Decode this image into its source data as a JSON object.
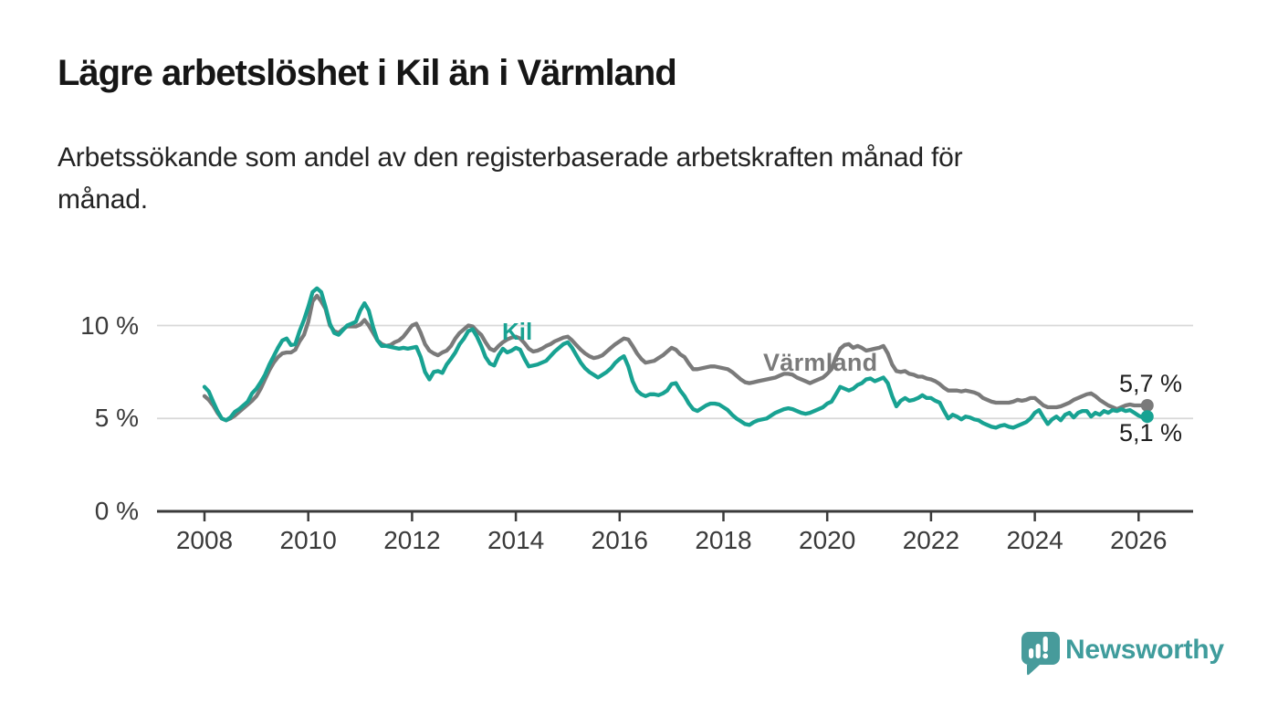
{
  "page": {
    "background": "#ffffff"
  },
  "header": {
    "title": "Lägre arbetslöshet i Kil än i Värmland",
    "subtitle_lines": [
      "Arbetssökande som andel av den registerbaserade arbetskraften månad för",
      "månad."
    ]
  },
  "chart_data": {
    "type": "line",
    "title": "Lägre arbetslöshet i Kil än i Värmland",
    "description": "Arbetssökande som andel av den registerbaserade arbetskraften månad för månad.",
    "x_start_year": 2008,
    "x_frequency": "monthly",
    "x_end": "2026-03",
    "ylim": [
      0,
      13
    ],
    "grid": "horizontal-only",
    "y_gridline_values": [
      5,
      10
    ],
    "y_ticks": [
      {
        "label": "0 %",
        "value": 0
      },
      {
        "label": "5 %",
        "value": 5
      },
      {
        "label": "10 %",
        "value": 10
      }
    ],
    "x_ticks": [
      {
        "label": "2008",
        "year": 2008
      },
      {
        "label": "2010",
        "year": 2010
      },
      {
        "label": "2012",
        "year": 2012
      },
      {
        "label": "2014",
        "year": 2014
      },
      {
        "label": "2016",
        "year": 2016
      },
      {
        "label": "2018",
        "year": 2018
      },
      {
        "label": "2020",
        "year": 2020
      },
      {
        "label": "2022",
        "year": 2022
      },
      {
        "label": "2024",
        "year": 2024
      },
      {
        "label": "2026",
        "year": 2026
      }
    ],
    "series_labels": [
      {
        "text": "Kil",
        "color": "#18a292"
      },
      {
        "text": "Värmland",
        "color": "#7a7a7a"
      }
    ],
    "annotations": [
      {
        "text": "5,7 %",
        "series": "Värmland",
        "value": 5.7
      },
      {
        "text": "5,1 %",
        "series": "Kil",
        "value": 5.1
      }
    ],
    "series": [
      {
        "name": "Värmland",
        "color": "#7a7a7a",
        "values": [
          6.2,
          6.0,
          5.7,
          5.3,
          5.0,
          4.9,
          5.0,
          5.15,
          5.35,
          5.55,
          5.75,
          5.95,
          6.2,
          6.6,
          7.1,
          7.6,
          8.0,
          8.3,
          8.5,
          8.55,
          8.55,
          8.7,
          9.15,
          9.5,
          10.2,
          11.3,
          11.6,
          11.3,
          10.9,
          10.0,
          9.7,
          9.6,
          9.8,
          9.95,
          9.95,
          9.95,
          10.05,
          10.3,
          10.0,
          9.6,
          9.2,
          9.0,
          8.9,
          8.95,
          9.1,
          9.2,
          9.4,
          9.7,
          10.0,
          10.1,
          9.6,
          9.0,
          8.65,
          8.5,
          8.4,
          8.55,
          8.65,
          8.9,
          9.3,
          9.6,
          9.8,
          10.0,
          9.95,
          9.7,
          9.5,
          9.1,
          8.75,
          8.65,
          8.9,
          9.1,
          9.25,
          9.35,
          9.4,
          9.3,
          9.05,
          8.75,
          8.6,
          8.65,
          8.75,
          8.9,
          9.0,
          9.15,
          9.25,
          9.35,
          9.4,
          9.2,
          8.95,
          8.7,
          8.5,
          8.35,
          8.25,
          8.3,
          8.4,
          8.6,
          8.8,
          9.0,
          9.15,
          9.3,
          9.25,
          8.9,
          8.5,
          8.2,
          8.0,
          8.05,
          8.1,
          8.25,
          8.4,
          8.6,
          8.8,
          8.7,
          8.45,
          8.3,
          7.95,
          7.65,
          7.65,
          7.7,
          7.75,
          7.8,
          7.8,
          7.75,
          7.7,
          7.65,
          7.5,
          7.3,
          7.1,
          6.95,
          6.9,
          6.95,
          7.0,
          7.05,
          7.1,
          7.15,
          7.2,
          7.3,
          7.4,
          7.4,
          7.35,
          7.2,
          7.1,
          7.0,
          6.9,
          7.0,
          7.1,
          7.2,
          7.4,
          7.65,
          8.3,
          8.75,
          8.95,
          9.0,
          8.8,
          8.9,
          8.8,
          8.65,
          8.7,
          8.75,
          8.8,
          8.9,
          8.5,
          7.9,
          7.55,
          7.5,
          7.55,
          7.4,
          7.35,
          7.25,
          7.25,
          7.15,
          7.1,
          7.0,
          6.85,
          6.65,
          6.5,
          6.5,
          6.5,
          6.45,
          6.5,
          6.45,
          6.4,
          6.3,
          6.1,
          6.0,
          5.9,
          5.85,
          5.85,
          5.85,
          5.85,
          5.9,
          6.0,
          5.95,
          6.0,
          6.1,
          6.1,
          5.9,
          5.7,
          5.6,
          5.6,
          5.6,
          5.65,
          5.75,
          5.85,
          6.0,
          6.1,
          6.2,
          6.3,
          6.35,
          6.2,
          6.0,
          5.85,
          5.7,
          5.6,
          5.5,
          5.6,
          5.7,
          5.75,
          5.7,
          5.7,
          5.7,
          5.7
        ]
      },
      {
        "name": "Kil",
        "color": "#18a292",
        "values": [
          6.7,
          6.45,
          5.9,
          5.4,
          5.0,
          4.9,
          5.05,
          5.35,
          5.5,
          5.7,
          5.9,
          6.35,
          6.6,
          6.95,
          7.35,
          7.9,
          8.35,
          8.8,
          9.2,
          9.3,
          8.95,
          9.0,
          9.7,
          10.3,
          11.0,
          11.8,
          12.0,
          11.8,
          11.0,
          10.1,
          9.6,
          9.5,
          9.75,
          10.0,
          10.1,
          10.2,
          10.8,
          11.2,
          10.8,
          9.9,
          9.2,
          8.9,
          8.9,
          8.85,
          8.8,
          8.75,
          8.8,
          8.75,
          8.8,
          8.85,
          8.3,
          7.5,
          7.1,
          7.5,
          7.55,
          7.45,
          7.9,
          8.2,
          8.55,
          9.0,
          9.3,
          9.7,
          9.8,
          9.4,
          8.9,
          8.3,
          7.95,
          7.85,
          8.4,
          8.75,
          8.55,
          8.65,
          8.8,
          8.7,
          8.2,
          7.8,
          7.85,
          7.9,
          8.0,
          8.1,
          8.35,
          8.6,
          8.8,
          9.0,
          9.1,
          8.8,
          8.4,
          8.0,
          7.7,
          7.5,
          7.35,
          7.2,
          7.35,
          7.5,
          7.7,
          8.0,
          8.2,
          8.35,
          7.8,
          7.0,
          6.5,
          6.3,
          6.2,
          6.3,
          6.3,
          6.25,
          6.35,
          6.5,
          6.85,
          6.9,
          6.5,
          6.2,
          5.8,
          5.5,
          5.4,
          5.55,
          5.7,
          5.8,
          5.8,
          5.75,
          5.6,
          5.45,
          5.2,
          5.0,
          4.85,
          4.7,
          4.65,
          4.8,
          4.9,
          4.95,
          5.0,
          5.15,
          5.3,
          5.4,
          5.5,
          5.55,
          5.5,
          5.4,
          5.3,
          5.25,
          5.3,
          5.4,
          5.5,
          5.6,
          5.8,
          5.9,
          6.3,
          6.7,
          6.6,
          6.5,
          6.6,
          6.8,
          6.9,
          7.1,
          7.15,
          7.0,
          7.1,
          7.2,
          6.9,
          6.2,
          5.65,
          5.95,
          6.1,
          5.95,
          6.0,
          6.1,
          6.25,
          6.1,
          6.1,
          5.95,
          5.85,
          5.4,
          5.0,
          5.2,
          5.1,
          4.95,
          5.1,
          5.05,
          4.95,
          4.9,
          4.75,
          4.65,
          4.55,
          4.5,
          4.6,
          4.65,
          4.55,
          4.5,
          4.6,
          4.7,
          4.8,
          5.0,
          5.3,
          5.45,
          5.05,
          4.7,
          4.95,
          5.1,
          4.9,
          5.2,
          5.3,
          5.05,
          5.3,
          5.4,
          5.4,
          5.1,
          5.3,
          5.2,
          5.4,
          5.3,
          5.45,
          5.4,
          5.5,
          5.4,
          5.45,
          5.3,
          5.15,
          5.05,
          5.1
        ]
      }
    ],
    "style": {
      "line_width": 4.3,
      "axis_color": "#3a3a3a",
      "gridline_color": "#d8d8d8",
      "end_dot_radius": 7
    }
  },
  "branding": {
    "name": "Newsworthy",
    "icon": "newsworthy-speech-bubble-bar-chart-icon",
    "color": "#479b9b"
  }
}
